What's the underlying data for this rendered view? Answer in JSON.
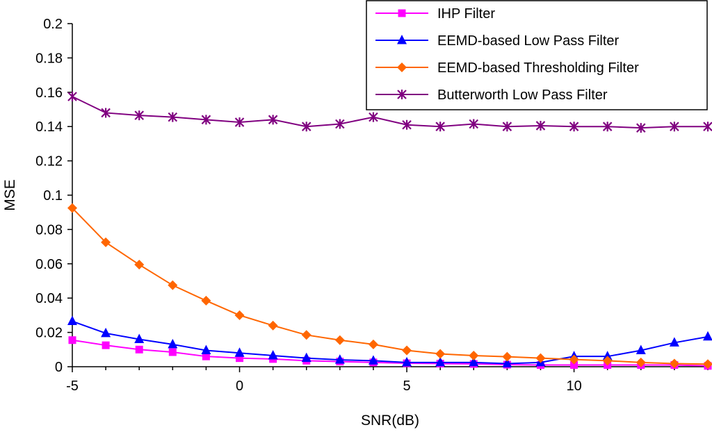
{
  "chart_data": {
    "type": "line",
    "title": "",
    "xlabel": "SNR(dB)",
    "ylabel": "MSE",
    "xlim": [
      -5,
      14
    ],
    "ylim": [
      0,
      0.2
    ],
    "x_ticks": [
      -5,
      0,
      5,
      10
    ],
    "y_ticks": [
      0,
      0.02,
      0.04,
      0.06,
      0.08,
      0.1,
      0.12,
      0.14,
      0.16,
      0.18,
      0.2
    ],
    "x_tick_labels": [
      "-5",
      "0",
      "5",
      "10"
    ],
    "y_tick_labels": [
      "0",
      "0.02",
      "0.04",
      "0.06",
      "0.08",
      "0.1",
      "0.12",
      "0.14",
      "0.16",
      "0.18",
      "0.2"
    ],
    "grid": false,
    "legend_position": "top-right",
    "x": [
      -5,
      -4,
      -3,
      -2,
      -1,
      0,
      1,
      2,
      3,
      4,
      5,
      6,
      7,
      8,
      9,
      10,
      11,
      12,
      13,
      14
    ],
    "series": [
      {
        "name": "IHP Filter",
        "color": "#ff00ff",
        "marker": "square",
        "values": [
          0.0155,
          0.0125,
          0.01,
          0.0085,
          0.006,
          0.005,
          0.0045,
          0.0035,
          0.003,
          0.0025,
          0.002,
          0.0018,
          0.0016,
          0.0012,
          0.001,
          0.001,
          0.001,
          0.001,
          0.001,
          0.0005
        ]
      },
      {
        "name": "EEMD-based Low Pass Filter",
        "color": "#0000ff",
        "marker": "triangle",
        "values": [
          0.0265,
          0.0195,
          0.016,
          0.013,
          0.0095,
          0.008,
          0.0065,
          0.005,
          0.004,
          0.0035,
          0.0025,
          0.0025,
          0.0025,
          0.0018,
          0.0025,
          0.006,
          0.006,
          0.0095,
          0.014,
          0.0175
        ]
      },
      {
        "name": "EEMD-based Thresholding Filter",
        "color": "#ff6600",
        "marker": "diamond",
        "values": [
          0.0925,
          0.0725,
          0.0595,
          0.0475,
          0.0385,
          0.03,
          0.024,
          0.0185,
          0.0155,
          0.013,
          0.0095,
          0.0075,
          0.0065,
          0.0058,
          0.005,
          0.0042,
          0.0035,
          0.0025,
          0.0018,
          0.0015
        ]
      },
      {
        "name": "Butterworth Low Pass Filter",
        "color": "#800080",
        "marker": "asterisk",
        "values": [
          0.1575,
          0.148,
          0.1465,
          0.1455,
          0.144,
          0.1425,
          0.144,
          0.14,
          0.1415,
          0.1455,
          0.141,
          0.14,
          0.1415,
          0.14,
          0.1405,
          0.14,
          0.14,
          0.1392,
          0.14,
          0.14
        ]
      }
    ]
  }
}
